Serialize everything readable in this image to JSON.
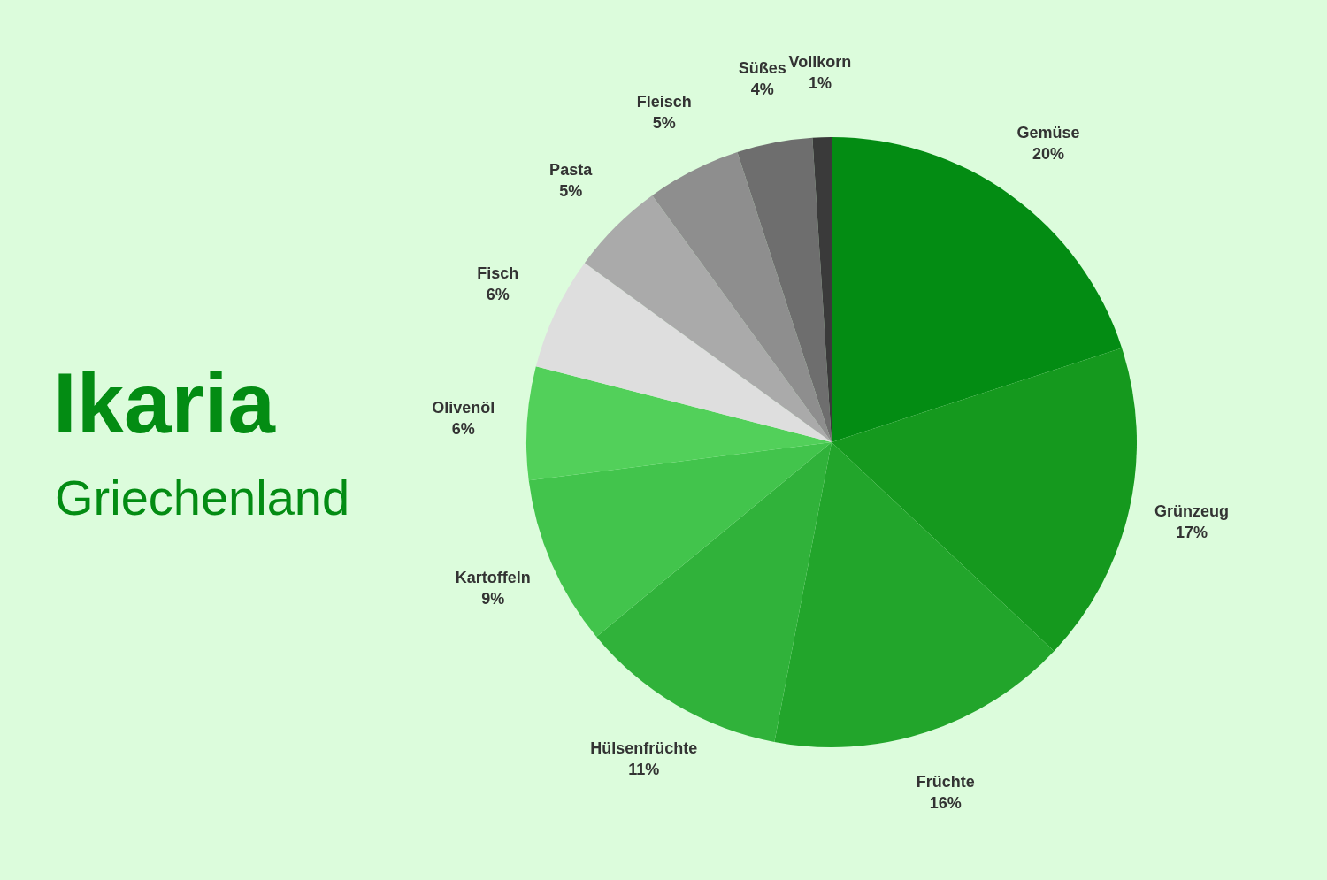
{
  "chart_data": {
    "type": "pie",
    "title": "Ikaria",
    "subtitle": "Griechenland",
    "categories": [
      "Gemüse",
      "Grünzeug",
      "Früchte",
      "Hülsenfrüchte",
      "Kartoffeln",
      "Olivenöl",
      "Fisch",
      "Pasta",
      "Fleisch",
      "Süßes",
      "Vollkorn"
    ],
    "values": [
      20,
      17,
      16,
      11,
      9,
      6,
      6,
      5,
      5,
      4,
      1
    ],
    "value_labels": [
      "20%",
      "17%",
      "16%",
      "11%",
      "9%",
      "6%",
      "6%",
      "5%",
      "5%",
      "4%",
      "1%"
    ],
    "colors": [
      "#038c13",
      "#15991e",
      "#22a52b",
      "#30b23a",
      "#42c44c",
      "#52d05a",
      "#dedede",
      "#aaaaaa",
      "#8e8e8e",
      "#6e6e6e",
      "#3a3a3a"
    ],
    "legend": false
  }
}
